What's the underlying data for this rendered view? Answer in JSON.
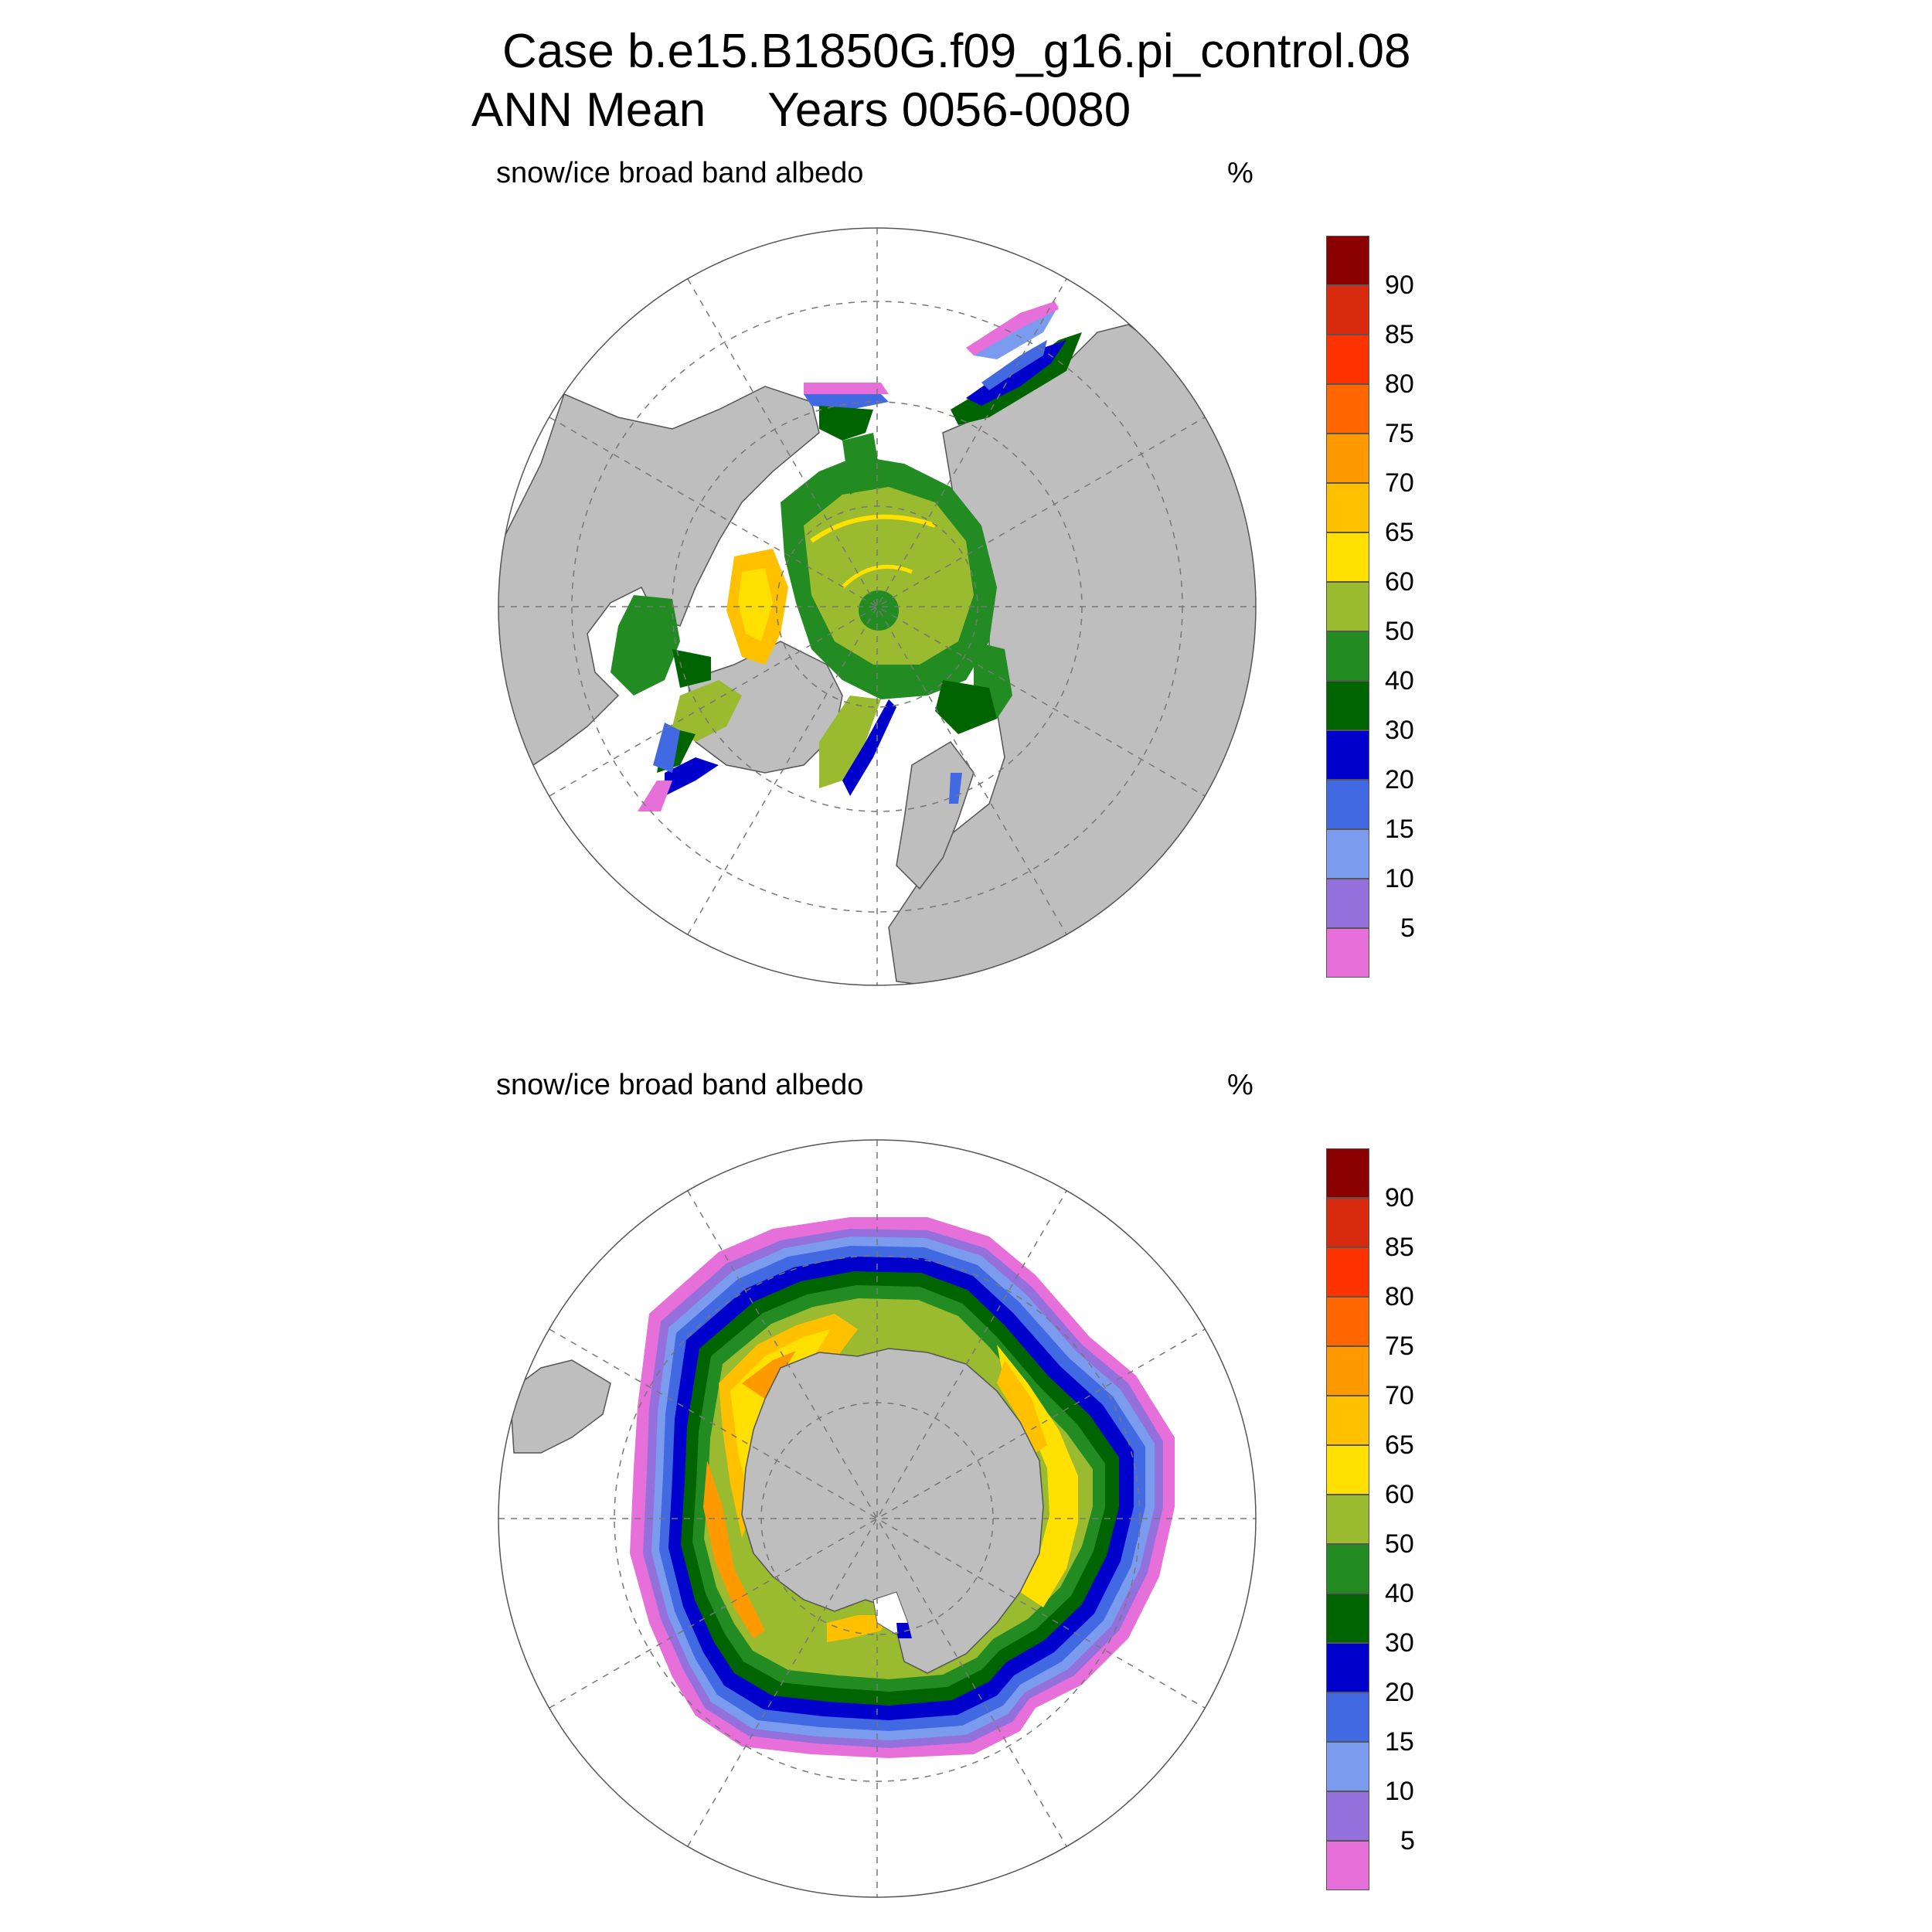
{
  "header": {
    "case_line": "Case b.e15.B1850G.f09_g16.pi_control.08",
    "season": "ANN Mean",
    "years": "Years 0056-0080"
  },
  "panels": [
    {
      "id": "north",
      "hemisphere": "Northern Hemisphere",
      "left_label": "snow/ice broad band albedo",
      "right_label": "%"
    },
    {
      "id": "south",
      "hemisphere": "Southern Hemisphere",
      "left_label": "snow/ice broad band albedo",
      "right_label": "%"
    }
  ],
  "colorbar": {
    "labels": [
      "5",
      "10",
      "15",
      "20",
      "30",
      "40",
      "50",
      "60",
      "65",
      "70",
      "75",
      "80",
      "85",
      "90"
    ],
    "colors": [
      "#e66fd9",
      "#9370db",
      "#7b9bef",
      "#4169e1",
      "#0000cd",
      "#006400",
      "#228b22",
      "#9aba30",
      "#ffe000",
      "#ffc000",
      "#ff9900",
      "#ff6600",
      "#ff3300",
      "#d82a0e",
      "#8b0000"
    ]
  },
  "colors": {
    "land": "#bebebe",
    "ocean": "#ffffff",
    "grid": "#777777"
  }
}
